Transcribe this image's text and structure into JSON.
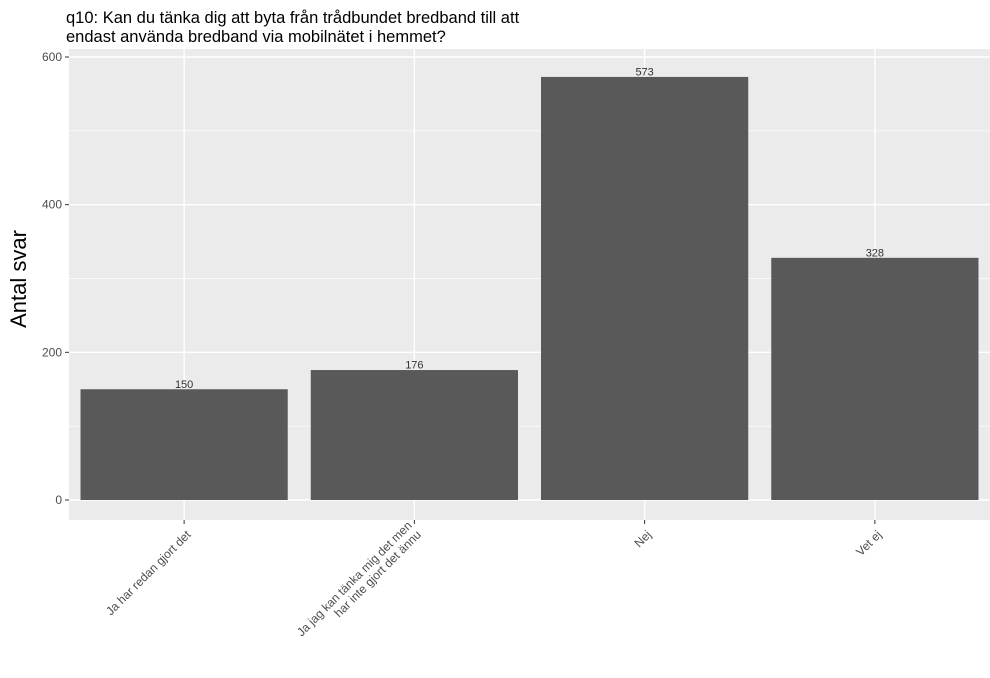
{
  "chart_data": {
    "type": "bar",
    "title_lines": [
      "q10: Kan du tänka dig att byta från trådbundet bredband till att",
      "endast använda bredband via mobilnätet i hemmet?"
    ],
    "xlabel": "",
    "ylabel": "Antal svar",
    "categories": [
      [
        "Ja har redan gjort det"
      ],
      [
        "Ja jag kan tänka mig det men",
        "har inte gjort det ännu"
      ],
      [
        "Nej"
      ],
      [
        "Vet ej"
      ]
    ],
    "values": [
      150,
      176,
      573,
      328
    ],
    "value_labels": [
      "150",
      "176",
      "573",
      "328"
    ],
    "ylim": [
      0,
      600
    ],
    "yticks": [
      0,
      200,
      400,
      600
    ],
    "grid": true,
    "legend": "none",
    "colors": {
      "bar": "#595959",
      "panel": "#ebebeb",
      "grid": "#ffffff",
      "text": "#000000",
      "tick_text": "#4d4d4d"
    }
  }
}
